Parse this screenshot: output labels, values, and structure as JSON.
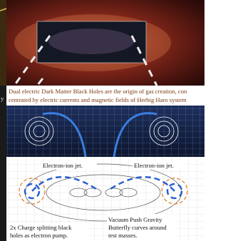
{
  "caption": {
    "lines": [
      "Dual electric Dark Matter Black Holes are the origin of gas creation, con",
      "centrated by electric currents and magnetic fields of Herbig Haro system"
    ]
  },
  "left_fragment": "y",
  "diagram": {
    "jet_left": "Electron-ion jet.",
    "jet_right": "Electron-ion jet.",
    "pump_note": [
      "2x Charge splitting black",
      "holes as electron pump."
    ],
    "gravity_note": [
      "Vacuum Push Gravity",
      "Butterfly curves around",
      "test masses."
    ]
  }
}
